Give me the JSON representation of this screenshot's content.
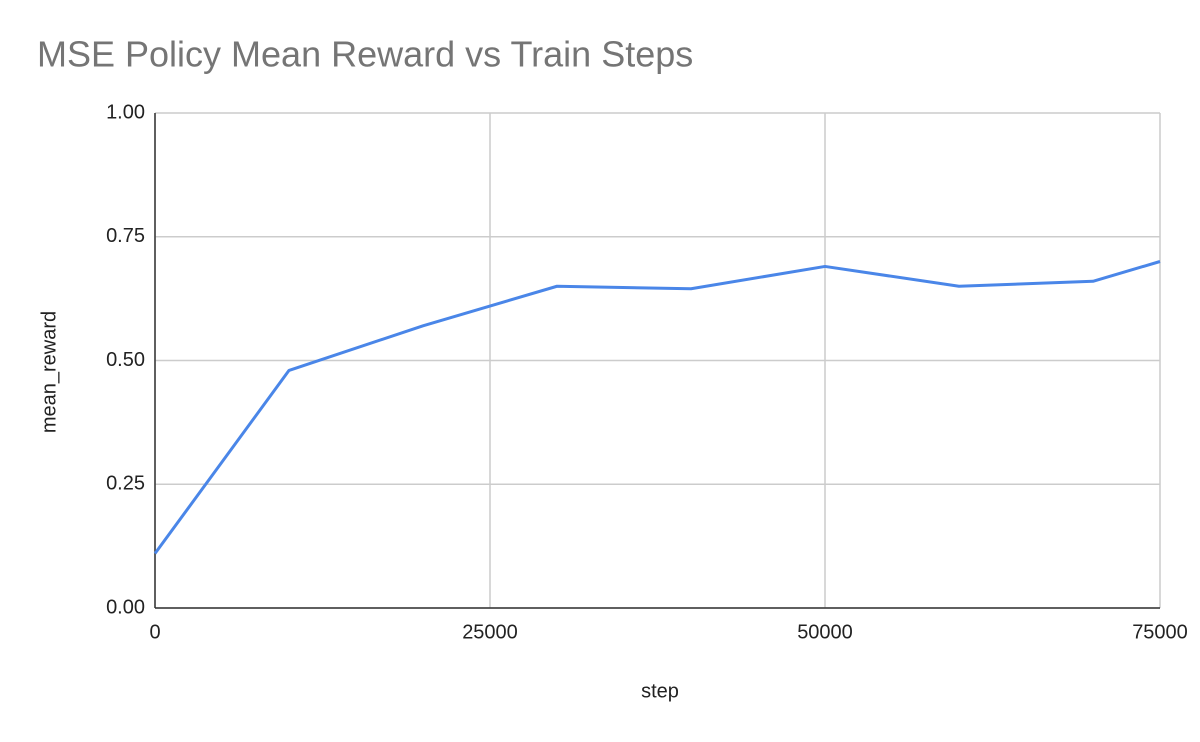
{
  "chart_data": {
    "type": "line",
    "title": "MSE Policy Mean Reward vs Train Steps",
    "x_label": "step",
    "y_label": "mean_reward",
    "x": [
      0,
      10000,
      20000,
      30000,
      40000,
      50000,
      60000,
      70000,
      75000
    ],
    "series": [
      {
        "name": "mean_reward",
        "color": "#4a86e8",
        "values": [
          0.11,
          0.48,
          0.57,
          0.65,
          0.645,
          0.69,
          0.65,
          0.66,
          0.7
        ]
      }
    ],
    "xlim": [
      0,
      75000
    ],
    "xticks": [
      0,
      25000,
      50000,
      75000
    ],
    "ylim": [
      0,
      1
    ],
    "yticks": [
      {
        "value": 0,
        "label": "0.00"
      },
      {
        "value": 0.25,
        "label": "0.25"
      },
      {
        "value": 0.5,
        "label": "0.50"
      },
      {
        "value": 0.75,
        "label": "0.75"
      },
      {
        "value": 1,
        "label": "1.00"
      }
    ],
    "grid": true
  }
}
